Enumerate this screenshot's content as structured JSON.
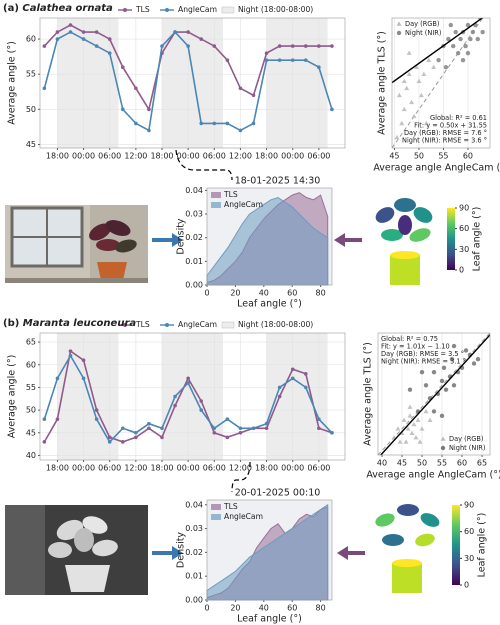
{
  "chart_data": [
    {
      "type": "line",
      "panel": "(a)",
      "title": "Calathea ornata",
      "ylabel": "Average angle (°)",
      "x": [
        -3,
        0,
        3,
        6,
        9,
        12,
        15,
        18,
        21,
        24,
        27,
        30,
        33,
        36,
        39,
        42,
        45,
        48,
        51,
        54,
        57,
        60,
        63
      ],
      "series": [
        {
          "name": "TLS",
          "color": "#8f5b8c",
          "values": [
            59,
            61,
            62,
            61,
            61,
            60,
            56,
            53,
            50,
            58,
            61,
            61,
            60,
            59,
            57,
            53,
            52,
            58,
            59,
            59,
            59,
            59,
            59
          ]
        },
        {
          "name": "AngleCam",
          "color": "#4b86b4",
          "values": [
            53,
            60,
            61,
            60,
            59,
            58,
            50,
            48,
            47,
            59,
            61,
            59,
            48,
            48,
            48,
            47,
            48,
            57,
            57,
            57,
            57,
            56,
            50
          ]
        }
      ],
      "shaded_regions": [
        [
          0,
          14
        ],
        [
          24,
          38
        ],
        [
          48,
          62
        ]
      ],
      "shade_label": "Night (18:00-08:00)",
      "xlim": [
        -4,
        66
      ],
      "xticks": [
        {
          "value": 0,
          "label": "18:00"
        },
        {
          "value": 6,
          "label": "00:00"
        },
        {
          "value": 12,
          "label": "06:00"
        },
        {
          "value": 18,
          "label": "12:00"
        },
        {
          "value": 24,
          "label": "18:00"
        },
        {
          "value": 30,
          "label": "00:00"
        },
        {
          "value": 36,
          "label": "06:00"
        },
        {
          "value": 42,
          "label": "12:00"
        },
        {
          "value": 48,
          "label": "18:00"
        },
        {
          "value": 54,
          "label": "00:00"
        },
        {
          "value": 60,
          "label": "06:00"
        }
      ],
      "ylim": [
        44.5,
        63
      ],
      "yticks": [
        45,
        50,
        55,
        60
      ],
      "grid": true
    },
    {
      "type": "scatter",
      "xlabel": "Average angle AngleCam (°)",
      "ylabel": "Average angle TLS (°)",
      "series": [
        {
          "name": "Day (RGB)",
          "color": "#bdbdbd",
          "marker": "triangle",
          "x": [
            45.5,
            46.5,
            47,
            47.5,
            48,
            48.5,
            49,
            49.5,
            50,
            50.5,
            51,
            52,
            46,
            48,
            51.5,
            53,
            47
          ],
          "values": [
            46,
            48,
            50,
            53,
            55,
            51,
            49,
            56,
            54,
            52,
            55,
            57,
            52,
            58,
            48,
            56,
            54
          ]
        },
        {
          "name": "Night (NIR)",
          "color": "#8a8a8a",
          "marker": "circle",
          "x": [
            54,
            55,
            55.5,
            56,
            57,
            57.5,
            58,
            58.5,
            59,
            59.5,
            60,
            60.5,
            61,
            61.5,
            62,
            62.5,
            63,
            56.5,
            59,
            60
          ],
          "values": [
            57,
            59,
            56,
            60,
            59,
            61,
            58,
            60,
            61,
            59,
            62,
            60,
            61,
            62,
            60,
            63,
            61,
            62,
            57,
            58
          ]
        }
      ],
      "fit": {
        "slope": 0.5,
        "intercept": 31.55
      },
      "identity_line": true,
      "annotations": [
        "Global: R² = 0.61",
        "Fit: y = 0.50x + 31.55",
        "Day (RGB): RMSE = 7.6 °",
        "Night (NIR): RMSE = 3.6 °"
      ],
      "annotation_corner": "lower right",
      "legend": "upper left",
      "xlim": [
        44.5,
        64.5
      ],
      "xticks": [
        45,
        50,
        55,
        60
      ],
      "ylim": [
        44.5,
        63
      ],
      "grid": true
    },
    {
      "type": "area",
      "title": "18-01-2025 14:30",
      "xlabel": "Leaf angle (°)",
      "ylabel": "Density",
      "x": [
        0,
        5,
        10,
        15,
        20,
        25,
        30,
        35,
        40,
        45,
        50,
        55,
        60,
        65,
        70,
        75,
        80,
        85
      ],
      "series": [
        {
          "name": "TLS",
          "color": "#9c6f98",
          "values": [
            0.001,
            0.002,
            0.004,
            0.007,
            0.01,
            0.014,
            0.02,
            0.024,
            0.028,
            0.031,
            0.034,
            0.036,
            0.038,
            0.039,
            0.037,
            0.036,
            0.038,
            0.029
          ]
        },
        {
          "name": "AngleCam",
          "color": "#6f9cc1",
          "values": [
            0.004,
            0.008,
            0.012,
            0.016,
            0.021,
            0.026,
            0.03,
            0.032,
            0.034,
            0.036,
            0.037,
            0.035,
            0.033,
            0.03,
            0.027,
            0.024,
            0.022,
            0.02
          ]
        }
      ],
      "legend": "upper left",
      "xlim": [
        0,
        88
      ],
      "xticks": [
        0,
        20,
        40,
        60,
        80
      ],
      "ylim": [
        0,
        0.041
      ],
      "yticks": [
        {
          "value": 0,
          "label": "0.00"
        },
        {
          "value": 0.01,
          "label": "0.01"
        },
        {
          "value": 0.02,
          "label": "0.02"
        },
        {
          "value": 0.03,
          "label": "0.03"
        },
        {
          "value": 0.04,
          "label": "0.04"
        }
      ]
    },
    {
      "type": "colorbar",
      "ylabel": "Leaf angle (°)",
      "ylim": [
        0,
        90
      ],
      "yticks": [
        0,
        30,
        60,
        90
      ]
    },
    {
      "type": "line",
      "panel": "(b)",
      "title": "Maranta leuconeura",
      "ylabel": "Average angle (°)",
      "x": [
        -3,
        0,
        3,
        6,
        9,
        12,
        15,
        18,
        21,
        24,
        27,
        30,
        33,
        36,
        39,
        42,
        45,
        48,
        51,
        54,
        57,
        60,
        63
      ],
      "series": [
        {
          "name": "TLS",
          "color": "#8f5b8c",
          "values": [
            43,
            48,
            63,
            61,
            50,
            44,
            43,
            44,
            46,
            44,
            51,
            57,
            52,
            45,
            44,
            45,
            46,
            46,
            53,
            59,
            58,
            46,
            45
          ]
        },
        {
          "name": "AngleCam",
          "color": "#4b86b4",
          "values": [
            48,
            57,
            62,
            57,
            48,
            43,
            46,
            45,
            47,
            46,
            53,
            56,
            50,
            46,
            48,
            46,
            46,
            47,
            55,
            57,
            55,
            48,
            45
          ]
        }
      ],
      "shaded_regions": [
        [
          0,
          14
        ],
        [
          24,
          38
        ],
        [
          48,
          62
        ]
      ],
      "shade_label": "Night (18:00-08:00)",
      "xlim": [
        -4,
        66
      ],
      "xticks": [
        {
          "value": 0,
          "label": "18:00"
        },
        {
          "value": 6,
          "label": "00:00"
        },
        {
          "value": 12,
          "label": "06:00"
        },
        {
          "value": 18,
          "label": "12:00"
        },
        {
          "value": 24,
          "label": "18:00"
        },
        {
          "value": 30,
          "label": "00:00"
        },
        {
          "value": 36,
          "label": "06:00"
        },
        {
          "value": 42,
          "label": "12:00"
        },
        {
          "value": 48,
          "label": "18:00"
        },
        {
          "value": 54,
          "label": "00:00"
        },
        {
          "value": 60,
          "label": "06:00"
        }
      ],
      "ylim": [
        39,
        67
      ],
      "yticks": [
        40,
        45,
        50,
        55,
        60,
        65
      ],
      "grid": true
    },
    {
      "type": "scatter",
      "xlabel": "Average angle AngleCam (°)",
      "ylabel": "Average angle TLS (°)",
      "series": [
        {
          "name": "Day (RGB)",
          "color": "#bdbdbd",
          "marker": "triangle",
          "x": [
            43,
            44,
            45,
            45.5,
            46,
            46.5,
            47,
            47.5,
            48,
            48.5,
            49,
            50,
            51,
            44.5,
            47,
            49.5,
            52
          ],
          "values": [
            43,
            45,
            44,
            47,
            42,
            45,
            48,
            44,
            46,
            43,
            47,
            45,
            49,
            42,
            50,
            42,
            47
          ]
        },
        {
          "name": "Night (NIR)",
          "color": "#7a7a7a",
          "marker": "circle",
          "x": [
            47,
            49,
            51,
            52,
            53,
            54,
            55,
            55.5,
            56,
            57,
            57.5,
            58,
            59,
            60,
            61,
            62,
            63,
            64,
            55,
            58,
            50,
            53
          ],
          "values": [
            54,
            49,
            55,
            52,
            58,
            53,
            56,
            59,
            54,
            57,
            61,
            55,
            58,
            59,
            63,
            62,
            60,
            61,
            48,
            64,
            58,
            49
          ]
        }
      ],
      "fit": {
        "slope": 1.01,
        "intercept": -1.1
      },
      "identity_line": true,
      "annotations": [
        "Global: R² = 0.75",
        "Fit: y = 1.01x − 1.10",
        "Day (RGB): RMSE = 3.5 °",
        "Night (NIR): RMSE = 3.1 °"
      ],
      "annotation_corner": "upper left",
      "legend": "lower right",
      "xlim": [
        39,
        67
      ],
      "xticks": [
        40,
        45,
        50,
        55,
        60,
        65
      ],
      "ylim": [
        39,
        67
      ],
      "grid": true
    },
    {
      "type": "area",
      "title": "20-01-2025 00:10",
      "xlabel": "Leaf angle (°)",
      "ylabel": "Density",
      "x": [
        0,
        5,
        10,
        15,
        20,
        25,
        30,
        35,
        40,
        45,
        50,
        55,
        60,
        65,
        70,
        75,
        80,
        85
      ],
      "series": [
        {
          "name": "TLS",
          "color": "#9c6f98",
          "values": [
            0.001,
            0.002,
            0.003,
            0.005,
            0.009,
            0.013,
            0.016,
            0.022,
            0.026,
            0.03,
            0.032,
            0.028,
            0.03,
            0.034,
            0.036,
            0.035,
            0.038,
            0.039
          ]
        },
        {
          "name": "AngleCam",
          "color": "#6f9cc1",
          "values": [
            0.004,
            0.006,
            0.008,
            0.01,
            0.012,
            0.015,
            0.018,
            0.02,
            0.022,
            0.024,
            0.026,
            0.028,
            0.03,
            0.032,
            0.034,
            0.036,
            0.038,
            0.04
          ]
        }
      ],
      "legend": "upper left",
      "xlim": [
        0,
        88
      ],
      "xticks": [
        0,
        20,
        40,
        60,
        80
      ],
      "ylim": [
        0,
        0.042
      ],
      "yticks": [
        {
          "value": 0,
          "label": "0.00"
        },
        {
          "value": 0.01,
          "label": "0.01"
        },
        {
          "value": 0.02,
          "label": "0.02"
        },
        {
          "value": 0.03,
          "label": "0.03"
        },
        {
          "value": 0.04,
          "label": "0.04"
        }
      ]
    },
    {
      "type": "colorbar",
      "ylabel": "Leaf angle (°)",
      "ylim": [
        0,
        90
      ],
      "yticks": [
        0,
        30,
        60,
        90
      ]
    }
  ]
}
